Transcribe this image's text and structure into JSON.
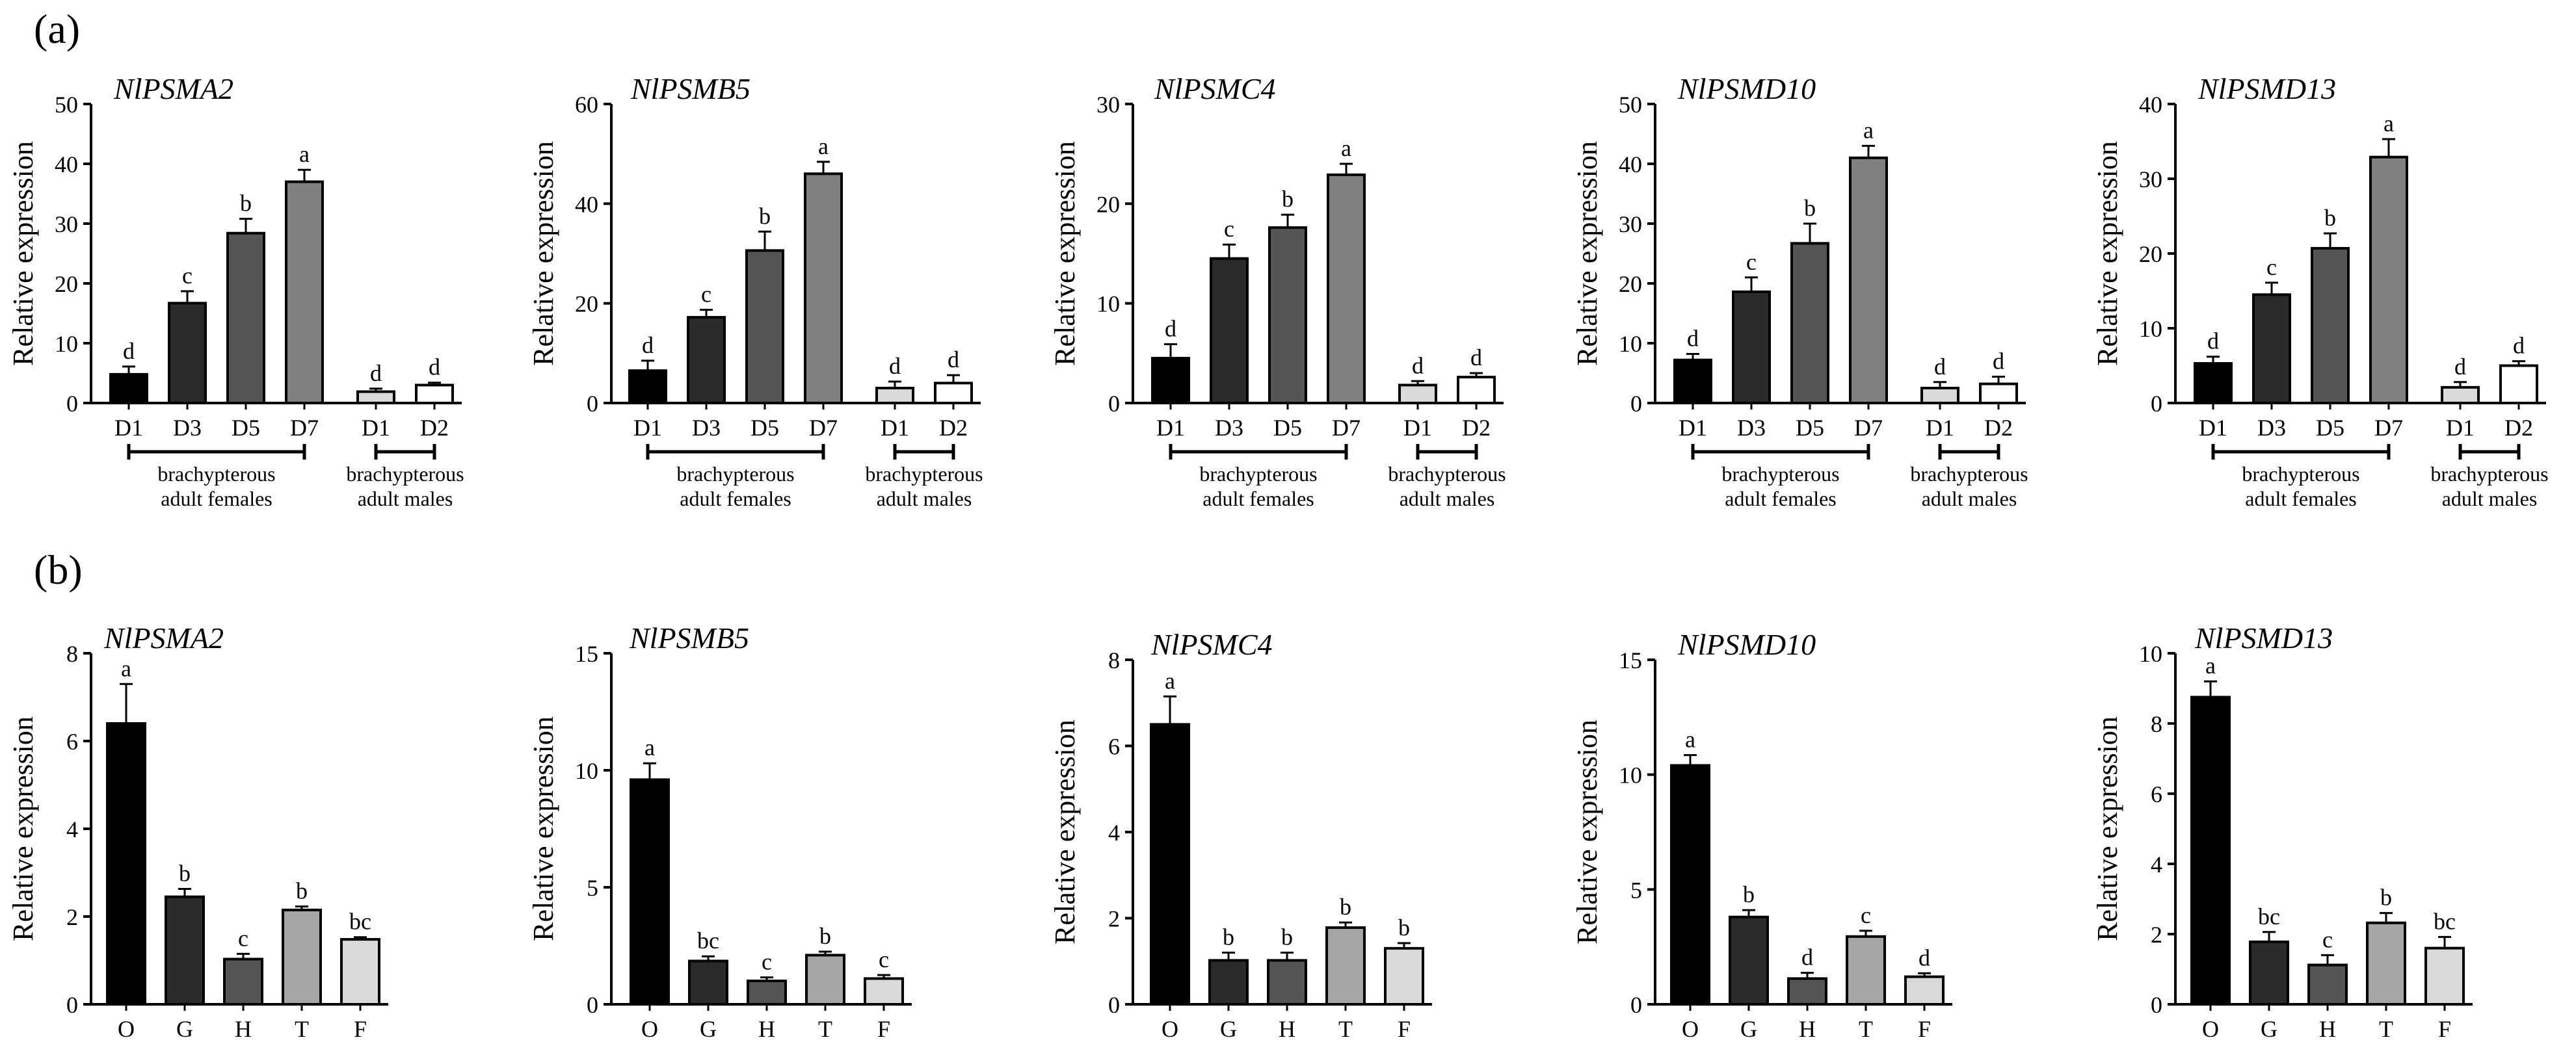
{
  "panel_labels": [
    "(a)",
    "(b)"
  ],
  "chart_data": [
    {
      "type": "bar",
      "panel": "(a)",
      "title": "NlPSMA2",
      "ylabel": "Relative expression",
      "ylim": [
        0,
        50
      ],
      "yticks": [
        0,
        10,
        20,
        30,
        40,
        50
      ],
      "categories": [
        "D1",
        "D3",
        "D5",
        "D7",
        "D1",
        "D2"
      ],
      "values": [
        4.8,
        16.7,
        28.4,
        37.0,
        1.9,
        3.0
      ],
      "errors": [
        1.3,
        2.0,
        2.4,
        2.0,
        0.5,
        0.4
      ],
      "letters": [
        "d",
        "c",
        "b",
        "a",
        "d",
        "d"
      ],
      "fills": [
        "#000000",
        "#2b2b2b",
        "#555555",
        "#808080",
        "#d9d9d9",
        "#ffffff"
      ],
      "groups": [
        {
          "label": "brachypterous adult females",
          "from": 0,
          "to": 3
        },
        {
          "label": "brachypterous adult males",
          "from": 4,
          "to": 5
        }
      ]
    },
    {
      "type": "bar",
      "panel": "(a)",
      "title": "NlPSMB5",
      "ylabel": "Relative expression",
      "ylim": [
        0,
        60
      ],
      "yticks": [
        0,
        20,
        40,
        60
      ],
      "categories": [
        "D1",
        "D3",
        "D5",
        "D7",
        "D1",
        "D2"
      ],
      "values": [
        6.5,
        17.2,
        30.6,
        46.0,
        3.0,
        4.0
      ],
      "errors": [
        2.0,
        1.5,
        3.8,
        2.4,
        1.3,
        1.6
      ],
      "letters": [
        "d",
        "c",
        "b",
        "a",
        "d",
        "d"
      ],
      "fills": [
        "#000000",
        "#2b2b2b",
        "#555555",
        "#808080",
        "#d9d9d9",
        "#ffffff"
      ],
      "groups": [
        {
          "label": "brachypterous adult females",
          "from": 0,
          "to": 3
        },
        {
          "label": "brachypterous adult males",
          "from": 4,
          "to": 5
        }
      ]
    },
    {
      "type": "bar",
      "panel": "(a)",
      "title": "NlPSMC4",
      "ylabel": "Relative expression",
      "ylim": [
        0,
        30
      ],
      "yticks": [
        0,
        10,
        20,
        30
      ],
      "categories": [
        "D1",
        "D3",
        "D5",
        "D7",
        "D1",
        "D2"
      ],
      "values": [
        4.5,
        14.5,
        17.6,
        22.9,
        1.8,
        2.6
      ],
      "errors": [
        1.4,
        1.4,
        1.3,
        1.1,
        0.4,
        0.4
      ],
      "letters": [
        "d",
        "c",
        "b",
        "a",
        "d",
        "d"
      ],
      "fills": [
        "#000000",
        "#2b2b2b",
        "#555555",
        "#808080",
        "#d9d9d9",
        "#ffffff"
      ],
      "groups": [
        {
          "label": "brachypterous adult females",
          "from": 0,
          "to": 3
        },
        {
          "label": "brachypterous adult males",
          "from": 4,
          "to": 5
        }
      ]
    },
    {
      "type": "bar",
      "panel": "(a)",
      "title": "NlPSMD10",
      "ylabel": "Relative expression",
      "ylim": [
        0,
        50
      ],
      "yticks": [
        0,
        10,
        20,
        30,
        40,
        50
      ],
      "categories": [
        "D1",
        "D3",
        "D5",
        "D7",
        "D1",
        "D2"
      ],
      "values": [
        7.2,
        18.6,
        26.7,
        41.0,
        2.5,
        3.2
      ],
      "errors": [
        1.0,
        2.4,
        3.3,
        2.0,
        1.0,
        1.2
      ],
      "letters": [
        "d",
        "c",
        "b",
        "a",
        "d",
        "d"
      ],
      "fills": [
        "#000000",
        "#2b2b2b",
        "#555555",
        "#808080",
        "#d9d9d9",
        "#ffffff"
      ],
      "groups": [
        {
          "label": "brachypterous adult females",
          "from": 0,
          "to": 3
        },
        {
          "label": "brachypterous adult males",
          "from": 4,
          "to": 5
        }
      ]
    },
    {
      "type": "bar",
      "panel": "(a)",
      "title": "NlPSMD13",
      "ylabel": "Relative expression",
      "ylim": [
        0,
        40
      ],
      "yticks": [
        0,
        10,
        20,
        30,
        40
      ],
      "categories": [
        "D1",
        "D3",
        "D5",
        "D7",
        "D1",
        "D2"
      ],
      "values": [
        5.3,
        14.5,
        20.7,
        32.9,
        2.1,
        5.0
      ],
      "errors": [
        0.9,
        1.6,
        2.0,
        2.4,
        0.7,
        0.6
      ],
      "letters": [
        "d",
        "c",
        "b",
        "a",
        "d",
        "d"
      ],
      "fills": [
        "#000000",
        "#2b2b2b",
        "#555555",
        "#808080",
        "#d9d9d9",
        "#ffffff"
      ],
      "groups": [
        {
          "label": "brachypterous adult females",
          "from": 0,
          "to": 3
        },
        {
          "label": "brachypterous adult males",
          "from": 4,
          "to": 5
        }
      ]
    },
    {
      "type": "bar",
      "panel": "(b)",
      "title": "NlPSMA2",
      "ylabel": "Relative expression",
      "ylim": [
        0,
        8
      ],
      "yticks": [
        0,
        2,
        4,
        6,
        8
      ],
      "categories": [
        "O",
        "G",
        "H",
        "T",
        "F"
      ],
      "values": [
        6.4,
        2.45,
        1.03,
        2.15,
        1.48
      ],
      "errors": [
        0.9,
        0.18,
        0.12,
        0.08,
        0.05
      ],
      "letters": [
        "a",
        "b",
        "c",
        "b",
        "bc"
      ],
      "fills": [
        "#000000",
        "#2b2b2b",
        "#555555",
        "#a6a6a6",
        "#d9d9d9"
      ]
    },
    {
      "type": "bar",
      "panel": "(b)",
      "title": "NlPSMB5",
      "ylabel": "Relative expression",
      "ylim": [
        0,
        15
      ],
      "yticks": [
        0,
        5,
        10,
        15
      ],
      "categories": [
        "O",
        "G",
        "H",
        "T",
        "F"
      ],
      "values": [
        9.6,
        1.85,
        1.0,
        2.1,
        1.1
      ],
      "errors": [
        0.7,
        0.2,
        0.15,
        0.15,
        0.15
      ],
      "letters": [
        "a",
        "bc",
        "c",
        "b",
        "c"
      ],
      "fills": [
        "#000000",
        "#2b2b2b",
        "#555555",
        "#a6a6a6",
        "#d9d9d9"
      ]
    },
    {
      "type": "bar",
      "panel": "(b)",
      "title": "NlPSMC4",
      "ylabel": "Relative expression",
      "ylim": [
        0,
        8
      ],
      "yticks": [
        0,
        2,
        4,
        6,
        8
      ],
      "categories": [
        "O",
        "G",
        "H",
        "T",
        "F"
      ],
      "values": [
        6.5,
        1.02,
        1.02,
        1.78,
        1.3
      ],
      "errors": [
        0.65,
        0.18,
        0.18,
        0.12,
        0.12
      ],
      "letters": [
        "a",
        "b",
        "b",
        "b",
        "b"
      ],
      "fills": [
        "#000000",
        "#2b2b2b",
        "#555555",
        "#a6a6a6",
        "#d9d9d9"
      ]
    },
    {
      "type": "bar",
      "panel": "(b)",
      "title": "NlPSMD10",
      "ylabel": "Relative expression",
      "ylim": [
        0,
        15
      ],
      "yticks": [
        0,
        5,
        10,
        15
      ],
      "categories": [
        "O",
        "G",
        "H",
        "T",
        "F"
      ],
      "values": [
        10.4,
        3.8,
        1.12,
        2.95,
        1.2
      ],
      "errors": [
        0.45,
        0.3,
        0.25,
        0.25,
        0.15
      ],
      "letters": [
        "a",
        "b",
        "d",
        "c",
        "d"
      ],
      "fills": [
        "#000000",
        "#2b2b2b",
        "#555555",
        "#a6a6a6",
        "#d9d9d9"
      ]
    },
    {
      "type": "bar",
      "panel": "(b)",
      "title": "NlPSMD13",
      "ylabel": "Relative expression",
      "ylim": [
        0,
        10
      ],
      "yticks": [
        0,
        2,
        4,
        6,
        8,
        10
      ],
      "categories": [
        "O",
        "G",
        "H",
        "T",
        "F"
      ],
      "values": [
        8.75,
        1.78,
        1.12,
        2.32,
        1.6
      ],
      "errors": [
        0.45,
        0.28,
        0.28,
        0.28,
        0.32
      ],
      "letters": [
        "a",
        "bc",
        "c",
        "b",
        "bc"
      ],
      "fills": [
        "#000000",
        "#2b2b2b",
        "#555555",
        "#a6a6a6",
        "#d9d9d9"
      ]
    }
  ]
}
